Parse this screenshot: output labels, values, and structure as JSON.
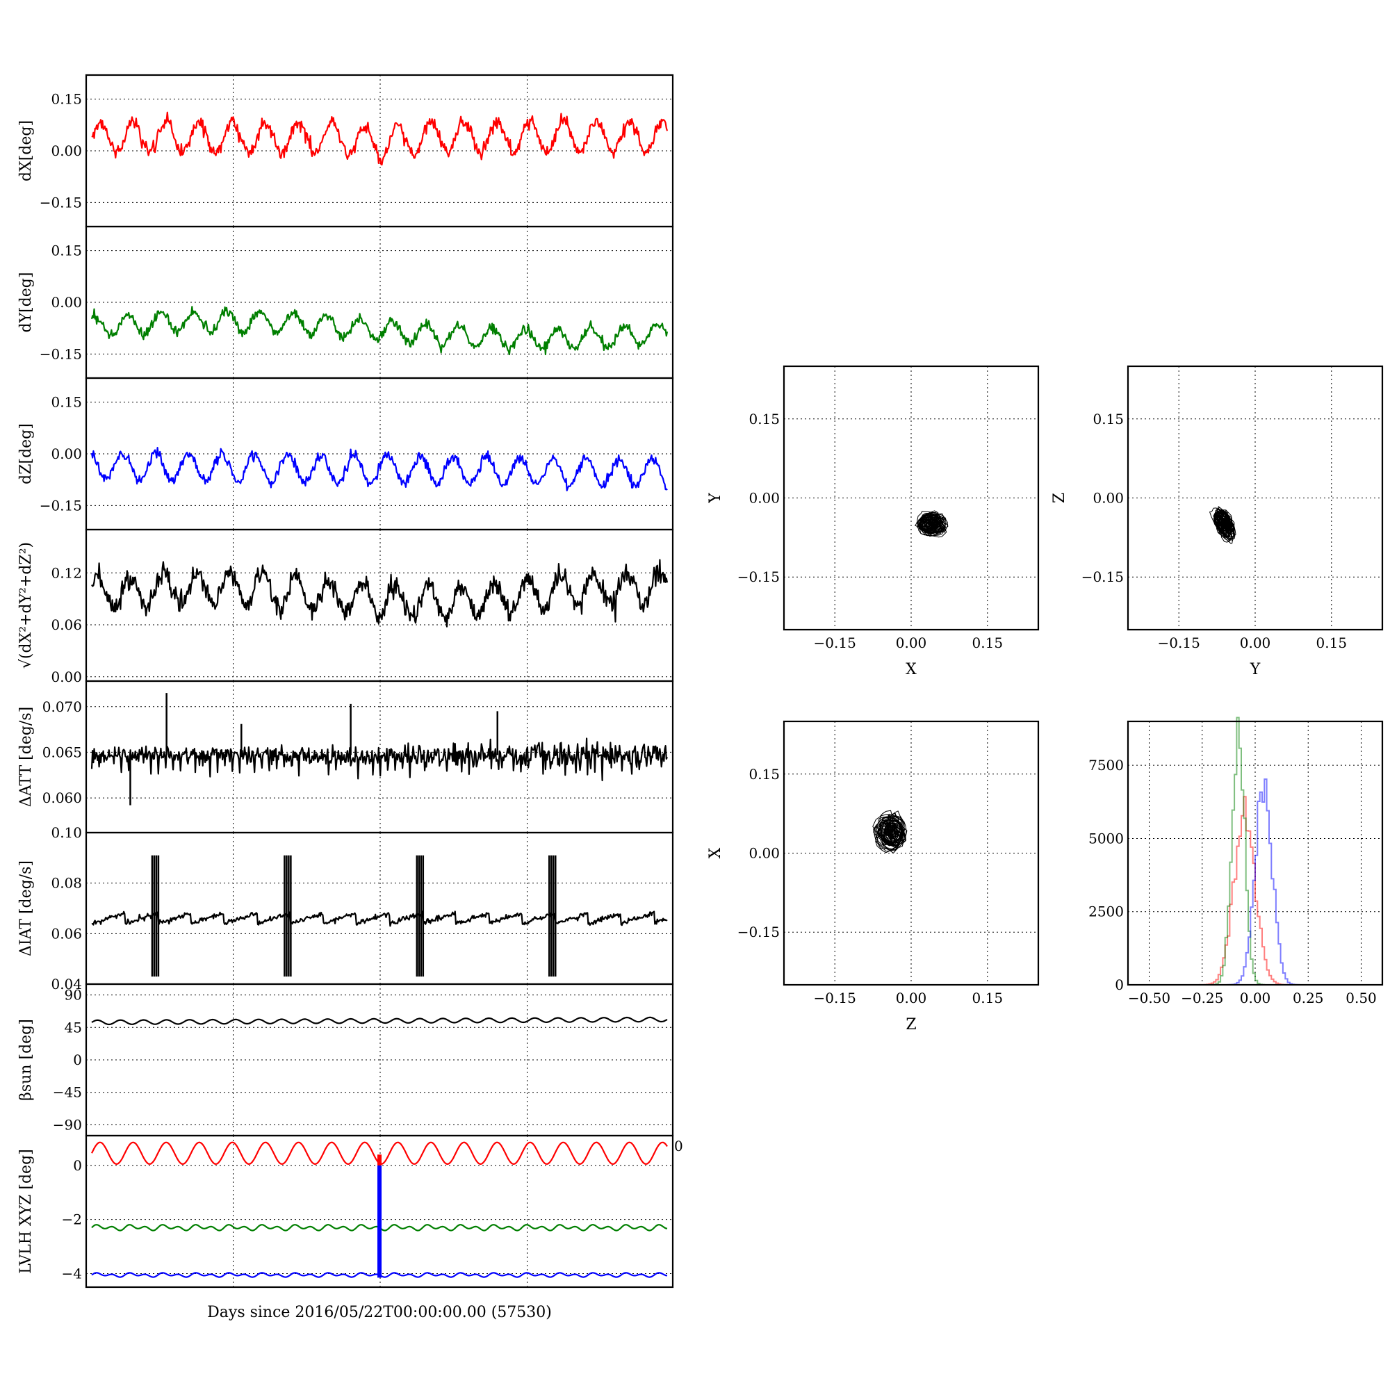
{
  "colors": {
    "red": "#ff0000",
    "green": "#007f00",
    "blue": "#0000ff",
    "black": "#000000"
  },
  "figure": {
    "xlabel": "Days since 2016/05/22T00:00:00.00 (57530)",
    "corner_label": "0"
  },
  "chart_data": [
    {
      "id": "dx",
      "type": "line",
      "ylabel": "dX[deg]",
      "ylim": [
        -0.22,
        0.22
      ],
      "yticks": [
        0.15,
        0.0,
        -0.15
      ],
      "yticklabels": [
        "0.15",
        "0.00",
        "−0.15"
      ],
      "grid": true,
      "series": [
        {
          "name": "",
          "color": "red",
          "shape": "dx"
        }
      ]
    },
    {
      "id": "dy",
      "type": "line",
      "ylabel": "dY[deg]",
      "ylim": [
        -0.22,
        0.22
      ],
      "yticks": [
        0.15,
        0.0,
        -0.15
      ],
      "yticklabels": [
        "0.15",
        "0.00",
        "−0.15"
      ],
      "grid": true,
      "series": [
        {
          "name": "",
          "color": "green",
          "shape": "dy"
        }
      ]
    },
    {
      "id": "dz",
      "type": "line",
      "ylabel": "dZ[deg]",
      "ylim": [
        -0.22,
        0.22
      ],
      "yticks": [
        0.15,
        0.0,
        -0.15
      ],
      "yticklabels": [
        "0.15",
        "0.00",
        "−0.15"
      ],
      "grid": true,
      "series": [
        {
          "name": "",
          "color": "blue",
          "shape": "dz"
        }
      ]
    },
    {
      "id": "dr",
      "type": "line",
      "ylabel": "√(dX²+dY²+dZ²)",
      "ylim": [
        -0.005,
        0.17
      ],
      "yticks": [
        0.12,
        0.06,
        0.0
      ],
      "yticklabels": [
        "0.12",
        "0.06",
        "0.00"
      ],
      "grid": true,
      "series": [
        {
          "name": "",
          "color": "black",
          "shape": "dr"
        }
      ]
    },
    {
      "id": "datt",
      "type": "line",
      "ylabel": "ΔATT [deg/s]",
      "ylim": [
        0.0562,
        0.0728
      ],
      "yticks": [
        0.07,
        0.065,
        0.06
      ],
      "yticklabels": [
        "0.070",
        "0.065",
        "0.060"
      ],
      "grid": true,
      "series": [
        {
          "name": "",
          "color": "black",
          "shape": "datt"
        }
      ]
    },
    {
      "id": "diat",
      "type": "line",
      "ylabel": "ΔIAT [deg/s]",
      "ylim": [
        0.04,
        0.1
      ],
      "yticks": [
        0.1,
        0.08,
        0.06,
        0.04
      ],
      "yticklabels": [
        "0.10",
        "0.08",
        "0.06",
        "0.04"
      ],
      "grid": true,
      "series": [
        {
          "name": "",
          "color": "black",
          "shape": "diat"
        }
      ]
    },
    {
      "id": "beta",
      "type": "line",
      "ylabel": "βsun [deg]",
      "ylim": [
        -105,
        105
      ],
      "yticks": [
        90,
        45,
        0,
        -45,
        -90
      ],
      "yticklabels": [
        "90",
        "45",
        "0",
        "−45",
        "−90"
      ],
      "grid": true,
      "series": [
        {
          "name": "",
          "color": "black",
          "shape": "beta"
        }
      ]
    },
    {
      "id": "lvlh",
      "type": "line",
      "ylabel": "LVLH XYZ [deg]",
      "ylim": [
        -4.5,
        1.1
      ],
      "yticks": [
        0,
        -2,
        -4
      ],
      "yticklabels": [
        "0",
        "−2",
        "−4"
      ],
      "grid": true,
      "series": [
        {
          "name": "",
          "color": "red",
          "shape": "lx"
        },
        {
          "name": "",
          "color": "green",
          "shape": "ly"
        },
        {
          "name": "",
          "color": "blue",
          "shape": "lz"
        }
      ]
    },
    {
      "id": "xy",
      "type": "scatter",
      "xlabel": "X",
      "ylabel": "Y",
      "xlim": [
        -0.25,
        0.25
      ],
      "ylim": [
        -0.25,
        0.25
      ],
      "ticks": [
        -0.15,
        0.0,
        0.15
      ],
      "ticklabels": [
        "−0.15",
        "0.00",
        "0.15"
      ],
      "grid": true,
      "center": [
        0.04,
        -0.05
      ],
      "spread": [
        0.06,
        0.045
      ]
    },
    {
      "id": "yz",
      "type": "scatter",
      "xlabel": "Y",
      "ylabel": "Z",
      "xlim": [
        -0.25,
        0.25
      ],
      "ylim": [
        -0.25,
        0.25
      ],
      "ticks": [
        -0.15,
        0.0,
        0.15
      ],
      "ticklabels": [
        "−0.15",
        "0.00",
        "0.15"
      ],
      "grid": true,
      "center": [
        -0.06,
        -0.05
      ],
      "spread": [
        0.035,
        0.065
      ]
    },
    {
      "id": "zx",
      "type": "scatter",
      "xlabel": "Z",
      "ylabel": "X",
      "xlim": [
        -0.25,
        0.25
      ],
      "ylim": [
        -0.25,
        0.25
      ],
      "ticks": [
        -0.15,
        0.0,
        0.15
      ],
      "ticklabels": [
        "−0.15",
        "0.00",
        "0.15"
      ],
      "grid": true,
      "center": [
        -0.04,
        0.04
      ],
      "spread": [
        0.06,
        0.07
      ]
    },
    {
      "id": "hist",
      "type": "histogram",
      "xlim": [
        -0.6,
        0.6
      ],
      "ylim": [
        0,
        9000
      ],
      "xticks": [
        -0.5,
        -0.25,
        0.0,
        0.25,
        0.5
      ],
      "xticklabels": [
        "−0.50",
        "−0.25",
        "0.00",
        "0.25",
        "0.50"
      ],
      "yticks": [
        0,
        2500,
        5000,
        7500
      ],
      "yticklabels": [
        "0",
        "2500",
        "5000",
        "7500"
      ],
      "grid": true,
      "series": [
        {
          "name": "",
          "color": "red",
          "center": -0.05,
          "width": 0.05,
          "peak": 5800
        },
        {
          "name": "",
          "color": "green",
          "center": -0.08,
          "width": 0.03,
          "peak": 8700
        },
        {
          "name": "",
          "color": "blue",
          "center": 0.04,
          "width": 0.04,
          "peak": 7100
        }
      ]
    }
  ]
}
